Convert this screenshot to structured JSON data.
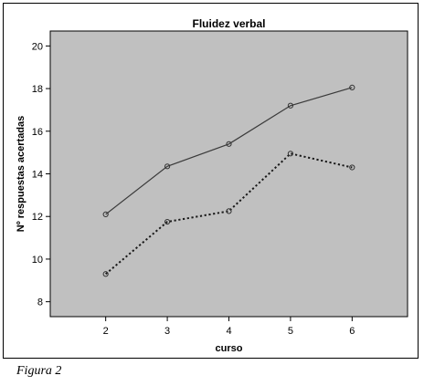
{
  "chart_data": {
    "type": "line",
    "title": "Fluidez verbal",
    "xlabel": "curso",
    "ylabel": "Nº respuestas acertadas",
    "x": [
      2,
      3,
      4,
      5,
      6
    ],
    "xlim": [
      1.1,
      6.9
    ],
    "ylim": [
      7.3,
      20.7
    ],
    "yticks": [
      8,
      10,
      12,
      14,
      16,
      18,
      20
    ],
    "grid": false,
    "legend": "none",
    "plot_background": "#c0c0c0",
    "series": [
      {
        "style": "solid",
        "color": "#3a3a3a",
        "values": [
          12.1,
          14.35,
          15.4,
          17.2,
          18.05
        ]
      },
      {
        "style": "dotted",
        "color": "#1a1a1a",
        "values": [
          9.3,
          11.75,
          12.25,
          14.95,
          14.3
        ]
      }
    ]
  },
  "caption": "Figura 2"
}
